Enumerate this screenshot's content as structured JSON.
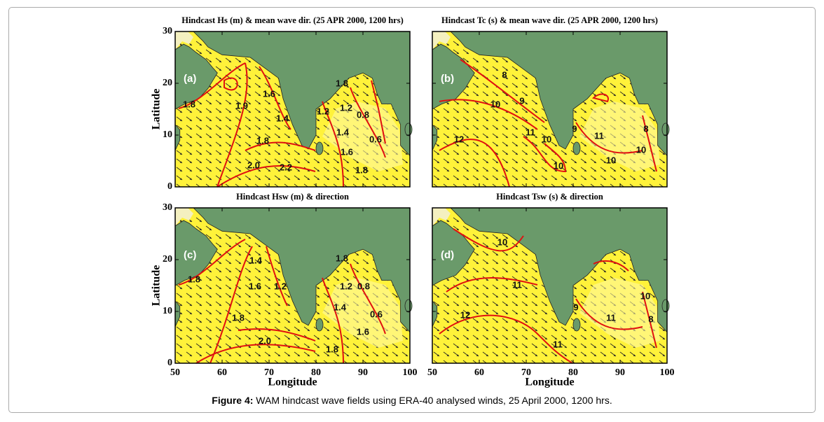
{
  "figure": {
    "panels": [
      {
        "title": "Hindcast Hs (m) & mean wave dir. (25 APR 2000, 1200 hrs)",
        "label": "(a)",
        "contour_labels": [
          "1.8",
          "1.9",
          "1.6",
          "1.4",
          "1.8",
          "2.0",
          "2.2",
          "1.2",
          "1.8",
          "1.2",
          "0.8",
          "1.4",
          "1.6",
          "0.6",
          "1.8"
        ]
      },
      {
        "title": "Hindcast Tc (s) & mean wave dir. (25 APR 2000, 1200 hrs)",
        "label": "(b)",
        "contour_labels": [
          "8",
          "9",
          "10",
          "11",
          "12",
          "10",
          "10",
          "11",
          "10",
          "9",
          "8",
          "10"
        ]
      },
      {
        "title": "Hindcast Hsw (m) & direction",
        "label": "(c)",
        "contour_labels": [
          "1.8",
          "1.4",
          "1.6",
          "1.2",
          "1.8",
          "2.0",
          "1.8",
          "1.6",
          "1.4",
          "1.2",
          "1.8",
          "0.8",
          "0.6"
        ]
      },
      {
        "title": "Hindcast Tsw (s) & direction",
        "label": "(d)",
        "contour_labels": [
          "10",
          "11",
          "12",
          "11",
          "11",
          "10",
          "9",
          "8"
        ]
      }
    ],
    "ylabel": "Latitude",
    "xlabel": "Longitude",
    "xlim": [
      50,
      100
    ],
    "ylim": [
      0,
      30
    ],
    "xticks": [
      50,
      60,
      70,
      80,
      90,
      100
    ],
    "yticks": [
      0,
      10,
      20,
      30
    ],
    "caption": {
      "label": "Figure 4:",
      "text": " WAM hindcast wave fields using ERA-40 analysed winds, 25 April 2000, 1200 hrs."
    }
  }
}
